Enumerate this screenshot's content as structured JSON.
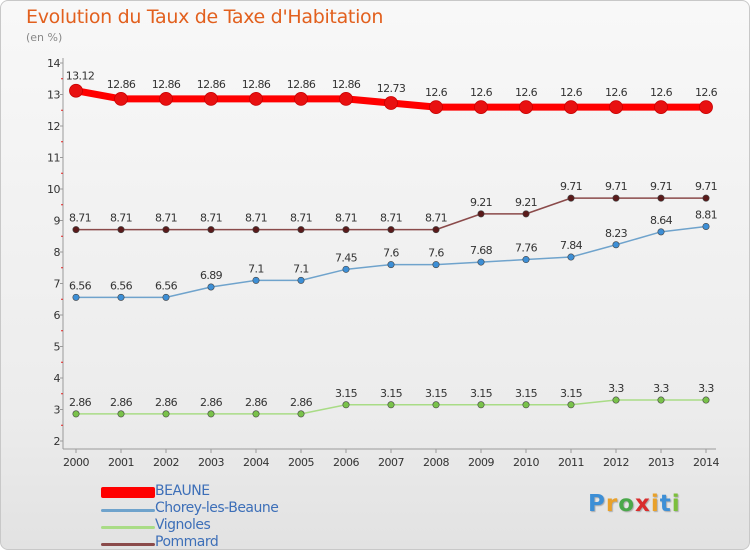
{
  "header": {
    "title": "Evolution du Taux de Taxe d'Habitation",
    "unit": "(en %)"
  },
  "logo": {
    "letters": [
      "P",
      "r",
      "o",
      "x",
      "i",
      "t",
      "i"
    ],
    "colors": [
      "#3d8fd6",
      "#e9a12a",
      "#4aa84a",
      "#d92d2d",
      "#e9a12a",
      "#3d8fd6",
      "#7cbf3c"
    ]
  },
  "chart_data": {
    "type": "line",
    "categories": [
      "2000",
      "2001",
      "2002",
      "2003",
      "2004",
      "2005",
      "2006",
      "2007",
      "2008",
      "2009",
      "2010",
      "2011",
      "2012",
      "2013",
      "2014"
    ],
    "yticks": [
      "2",
      "3",
      "4",
      "5",
      "6",
      "7",
      "8",
      "9",
      "10",
      "11",
      "12",
      "13",
      "14"
    ],
    "ylim": [
      2,
      14
    ],
    "grid": false,
    "legend_position": "bottom-left",
    "series": [
      {
        "name": "BEAUNE",
        "color": "#ff0000",
        "marker": "#e81010",
        "values": [
          13.12,
          12.86,
          12.86,
          12.86,
          12.86,
          12.86,
          12.86,
          12.73,
          12.6,
          12.6,
          12.6,
          12.6,
          12.6,
          12.6,
          12.6
        ],
        "labels": [
          "13.12",
          "12.86",
          "12.86",
          "12.86",
          "12.86",
          "12.86",
          "12.86",
          "12.73",
          "12.6",
          "12.6",
          "12.6",
          "12.6",
          "12.6",
          "12.6",
          "12.6"
        ]
      },
      {
        "name": "Chorey-les-Beaune",
        "color": "#6fa3cc",
        "marker": "#3d8fd6",
        "values": [
          6.56,
          6.56,
          6.56,
          6.89,
          7.1,
          7.1,
          7.45,
          7.6,
          7.6,
          7.68,
          7.76,
          7.84,
          8.23,
          8.64,
          8.81
        ],
        "labels": [
          "6.56",
          "6.56",
          "6.56",
          "6.89",
          "7.1",
          "7.1",
          "7.45",
          "7.6",
          "7.6",
          "7.68",
          "7.76",
          "7.84",
          "8.23",
          "8.64",
          "8.81"
        ]
      },
      {
        "name": "Vignoles",
        "color": "#a9dc86",
        "marker": "#79c24a",
        "values": [
          2.86,
          2.86,
          2.86,
          2.86,
          2.86,
          2.86,
          3.15,
          3.15,
          3.15,
          3.15,
          3.15,
          3.15,
          3.3,
          3.3,
          3.3
        ],
        "labels": [
          "2.86",
          "2.86",
          "2.86",
          "2.86",
          "2.86",
          "2.86",
          "3.15",
          "3.15",
          "3.15",
          "3.15",
          "3.15",
          "3.15",
          "3.3",
          "3.3",
          "3.3"
        ]
      },
      {
        "name": "Pommard",
        "color": "#8a4a4a",
        "marker": "#5a1a1a",
        "values": [
          8.71,
          8.71,
          8.71,
          8.71,
          8.71,
          8.71,
          8.71,
          8.71,
          8.71,
          9.21,
          9.21,
          9.71,
          9.71,
          9.71,
          9.71
        ],
        "labels": [
          "8.71",
          "8.71",
          "8.71",
          "8.71",
          "8.71",
          "8.71",
          "8.71",
          "8.71",
          "8.71",
          "9.21",
          "9.21",
          "9.71",
          "9.71",
          "9.71",
          "9.71"
        ]
      }
    ]
  }
}
